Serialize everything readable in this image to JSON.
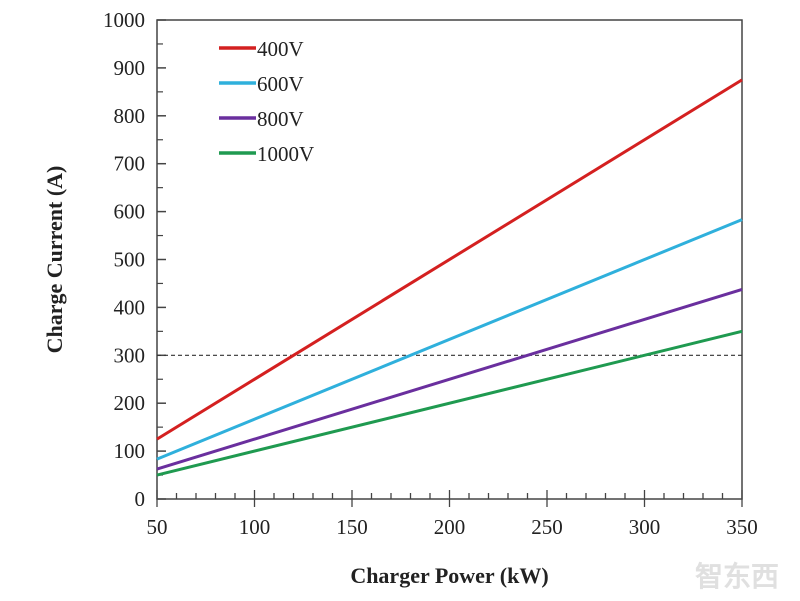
{
  "chart_data": {
    "type": "line",
    "title": "",
    "xlabel": "Charger Power (kW)",
    "ylabel": "Charge Current (A)",
    "xlim": [
      50,
      350
    ],
    "ylim": [
      0,
      1000
    ],
    "xticks": [
      50,
      100,
      150,
      200,
      250,
      300,
      350
    ],
    "yticks": [
      0,
      100,
      200,
      300,
      400,
      500,
      600,
      700,
      800,
      900,
      1000
    ],
    "grid": false,
    "legend_placement": "top-left",
    "x": [
      50,
      350
    ],
    "series": [
      {
        "name": "400V",
        "color": "#d42020",
        "values": [
          125,
          875
        ]
      },
      {
        "name": "600V",
        "color": "#2fb0dc",
        "values": [
          83.3,
          583.3
        ]
      },
      {
        "name": "800V",
        "color": "#6a2f9e",
        "values": [
          62.5,
          437.5
        ]
      },
      {
        "name": "1000V",
        "color": "#1f9a50",
        "values": [
          50,
          350
        ]
      }
    ],
    "reference_line": {
      "y": 300,
      "style": "dashed",
      "color": "#333333"
    }
  },
  "watermark": "智东西"
}
